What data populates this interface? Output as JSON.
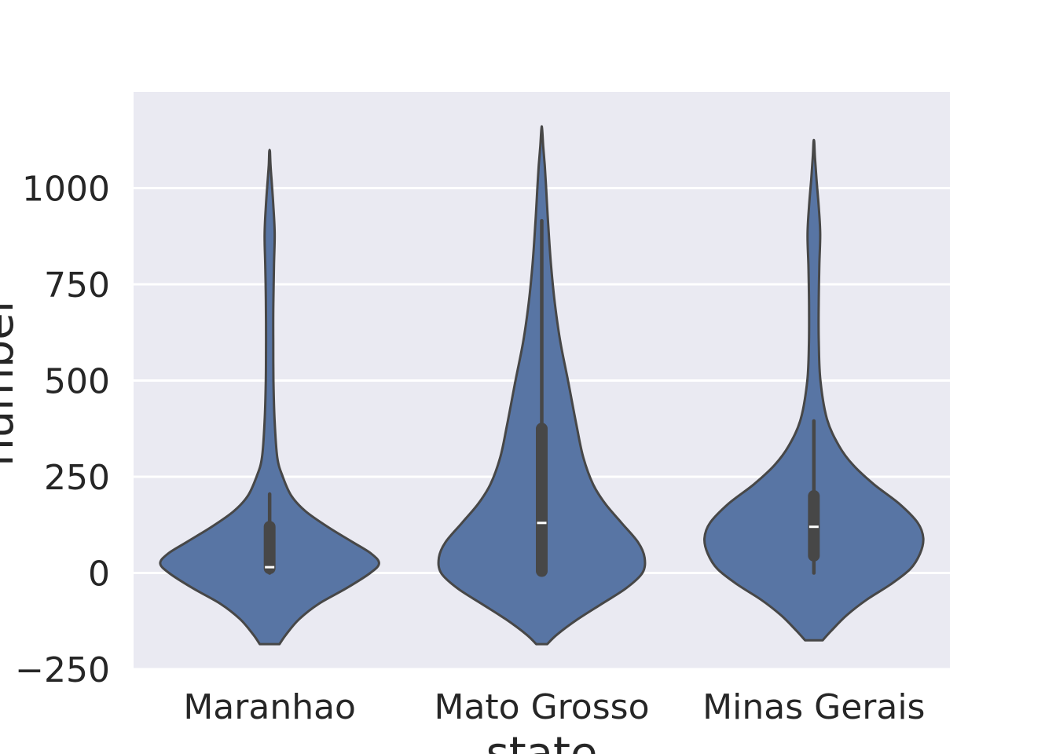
{
  "chart_data": {
    "type": "violin",
    "xlabel": "state",
    "ylabel": "number",
    "ylim": [
      -250,
      1250
    ],
    "yticks": [
      -250,
      0,
      250,
      500,
      750,
      1000
    ],
    "ytick_labels": [
      "−250",
      "0",
      "250",
      "500",
      "750",
      "1000"
    ],
    "grid": true,
    "categories": [
      "Maranhao",
      "Mato Grosso",
      "Minas Gerais"
    ],
    "colors": {
      "background": "#eaeaf2",
      "violin_fill": "#5875a4",
      "violin_edge": "#474747",
      "box": "#474747",
      "median": "#ffffff",
      "grid": "#ffffff"
    },
    "violins": [
      {
        "category": "Maranhao",
        "min": 0,
        "q1": 12,
        "median": 15,
        "q3": 120,
        "whisker_high": 205,
        "density": [
          [
            -185,
            0.09
          ],
          [
            -160,
            0.15
          ],
          [
            -120,
            0.27
          ],
          [
            -80,
            0.45
          ],
          [
            -40,
            0.7
          ],
          [
            0,
            0.92
          ],
          [
            25,
            1.0
          ],
          [
            50,
            0.93
          ],
          [
            80,
            0.76
          ],
          [
            120,
            0.53
          ],
          [
            160,
            0.33
          ],
          [
            200,
            0.2
          ],
          [
            250,
            0.12
          ],
          [
            300,
            0.07
          ],
          [
            400,
            0.045
          ],
          [
            500,
            0.035
          ],
          [
            600,
            0.033
          ],
          [
            700,
            0.034
          ],
          [
            800,
            0.04
          ],
          [
            880,
            0.046
          ],
          [
            950,
            0.035
          ],
          [
            1020,
            0.018
          ],
          [
            1060,
            0.008
          ],
          [
            1095,
            0.003
          ]
        ]
      },
      {
        "category": "Mato Grosso",
        "min": 0,
        "q1": 5,
        "median": 130,
        "q3": 375,
        "whisker_high": 915,
        "density": [
          [
            -185,
            0.05
          ],
          [
            -160,
            0.14
          ],
          [
            -120,
            0.33
          ],
          [
            -80,
            0.55
          ],
          [
            -40,
            0.77
          ],
          [
            0,
            0.92
          ],
          [
            40,
            0.94
          ],
          [
            80,
            0.88
          ],
          [
            130,
            0.73
          ],
          [
            180,
            0.58
          ],
          [
            230,
            0.47
          ],
          [
            300,
            0.38
          ],
          [
            380,
            0.32
          ],
          [
            500,
            0.24
          ],
          [
            600,
            0.17
          ],
          [
            700,
            0.12
          ],
          [
            800,
            0.085
          ],
          [
            900,
            0.06
          ],
          [
            1000,
            0.04
          ],
          [
            1060,
            0.027
          ],
          [
            1110,
            0.013
          ],
          [
            1155,
            0.003
          ]
        ]
      },
      {
        "category": "Minas Gerais",
        "min": 0,
        "q1": 45,
        "median": 120,
        "q3": 200,
        "whisker_high": 395,
        "density": [
          [
            -175,
            0.08
          ],
          [
            -150,
            0.16
          ],
          [
            -110,
            0.3
          ],
          [
            -70,
            0.48
          ],
          [
            -30,
            0.7
          ],
          [
            10,
            0.88
          ],
          [
            50,
            0.97
          ],
          [
            90,
            1.0
          ],
          [
            130,
            0.95
          ],
          [
            180,
            0.78
          ],
          [
            230,
            0.55
          ],
          [
            280,
            0.36
          ],
          [
            330,
            0.23
          ],
          [
            400,
            0.12
          ],
          [
            500,
            0.06
          ],
          [
            600,
            0.045
          ],
          [
            700,
            0.044
          ],
          [
            800,
            0.05
          ],
          [
            880,
            0.058
          ],
          [
            950,
            0.045
          ],
          [
            1020,
            0.025
          ],
          [
            1080,
            0.01
          ],
          [
            1120,
            0.003
          ]
        ]
      }
    ]
  }
}
